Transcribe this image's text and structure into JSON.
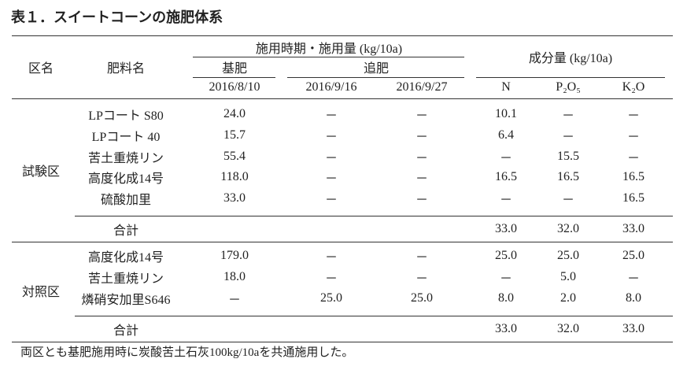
{
  "title": "表１．スイートコーンの施肥体系",
  "header": {
    "group_col": "区名",
    "fert_col": "肥料名",
    "timing": "施用時期・施用量 (kg/10a)",
    "base": "基肥",
    "top": "追肥",
    "base_date": "2016/8/10",
    "top_dates": [
      "2016/9/16",
      "2016/9/27"
    ],
    "components": "成分量 (kg/10a)",
    "comp_cols": [
      "N",
      "P₂O₅",
      "K₂O"
    ]
  },
  "groups": [
    {
      "name": "試験区",
      "rows": [
        [
          "LPコート S80",
          "24.0",
          "－",
          "－",
          "10.1",
          "－",
          "－"
        ],
        [
          "LPコート 40",
          "15.7",
          "－",
          "－",
          "6.4",
          "－",
          "－"
        ],
        [
          "苦土重焼リン",
          "55.4",
          "－",
          "－",
          "－",
          "15.5",
          "－"
        ],
        [
          "高度化成14号",
          "118.0",
          "－",
          "－",
          "16.5",
          "16.5",
          "16.5"
        ],
        [
          "硫酸加里",
          "33.0",
          "－",
          "－",
          "－",
          "－",
          "16.5"
        ]
      ],
      "total": {
        "label": "合計",
        "values": [
          "33.0",
          "32.0",
          "33.0"
        ]
      }
    },
    {
      "name": "対照区",
      "rows": [
        [
          "高度化成14号",
          "179.0",
          "－",
          "－",
          "25.0",
          "25.0",
          "25.0"
        ],
        [
          "苦土重焼リン",
          "18.0",
          "－",
          "－",
          "－",
          "5.0",
          "－"
        ],
        [
          "燐硝安加里S646",
          "－",
          "25.0",
          "25.0",
          "8.0",
          "2.0",
          "8.0"
        ]
      ],
      "total": {
        "label": "合計",
        "values": [
          "33.0",
          "32.0",
          "33.0"
        ]
      }
    }
  ],
  "footnote": "両区とも基肥施用時に炭酸苦土石灰100kg/10aを共通施用した。"
}
